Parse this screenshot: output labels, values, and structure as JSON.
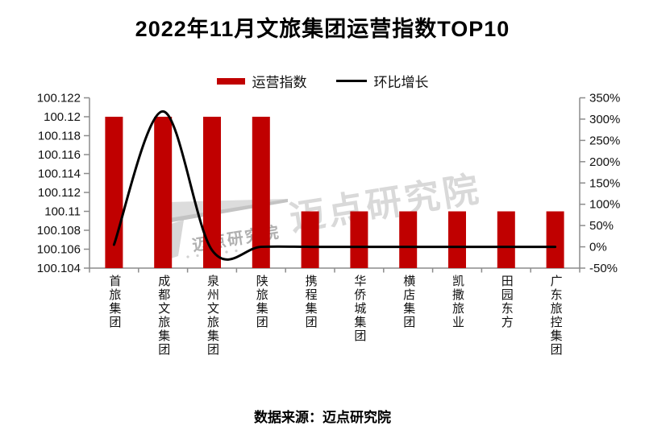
{
  "watermark": {
    "text_small": "迈点研究院",
    "text_large": "迈点研究院"
  },
  "chart_data": {
    "type": "bar",
    "subtype": "combo-bar-line-dual-axis",
    "title": "2022年11月文旅集团运营指数TOP10",
    "categories": [
      "首旅集团",
      "成都文旅集团",
      "泉州文旅集团",
      "陕旅集团",
      "携程集团",
      "华侨城集团",
      "横店集团",
      "凯撒旅业",
      "田园东方",
      "广东旅控集团"
    ],
    "series": [
      {
        "name": "运营指数",
        "type": "bar",
        "axis": "left",
        "color": "#c00000",
        "values": [
          100.12,
          100.12,
          100.12,
          100.12,
          100.11,
          100.11,
          100.11,
          100.11,
          100.11,
          100.11
        ]
      },
      {
        "name": "环比增长",
        "type": "line",
        "axis": "right",
        "color": "#000000",
        "values_percent": [
          5,
          318,
          -8,
          0,
          0,
          0,
          0,
          0,
          0,
          0
        ]
      }
    ],
    "left_axis": {
      "min": 100.104,
      "max": 100.122,
      "tick_labels": [
        "100.122",
        "100.12",
        "100.118",
        "100.116",
        "100.114",
        "100.112",
        "100.11",
        "100.108",
        "100.106",
        "100.104"
      ]
    },
    "right_axis": {
      "min": -50,
      "max": 350,
      "tick_labels": [
        "350%",
        "300%",
        "250%",
        "200%",
        "150%",
        "100%",
        "50%",
        "0%",
        "-50%"
      ]
    },
    "legend_position": "top",
    "grid": false,
    "source_note": "数据来源：迈点研究院"
  }
}
